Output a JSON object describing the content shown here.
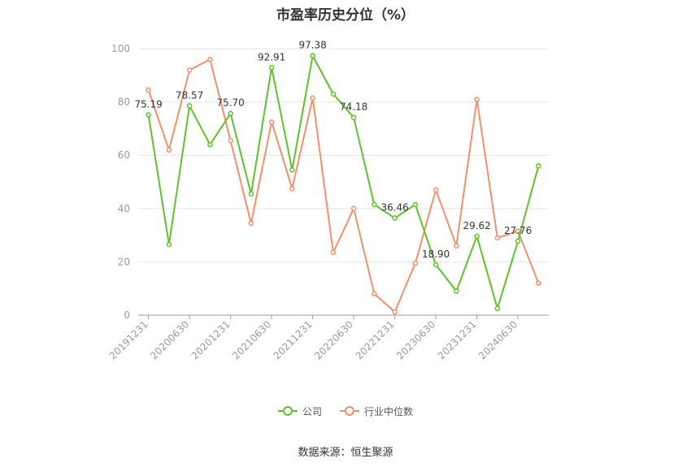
{
  "title": "市盈率历史分位（%）",
  "source": "数据来源：恒生聚源",
  "colors": {
    "company": "#5ec22c",
    "industry": "#f0916a",
    "grid": "#e6e6e6",
    "axis": "#999999",
    "tick_text": "#999999"
  },
  "chart_data": {
    "type": "line",
    "title": "市盈率历史分位（%）",
    "xlabel": "",
    "ylabel": "",
    "ylim": [
      0,
      100
    ],
    "yticks": [
      0,
      20,
      40,
      60,
      80,
      100
    ],
    "grid": true,
    "legend_position": "bottom-center",
    "x": [
      "20191231",
      "20200331",
      "20200630",
      "20200930",
      "20201231",
      "20210331",
      "20210630",
      "20210930",
      "20211231",
      "20220331",
      "20220630",
      "20220930",
      "20221231",
      "20230331",
      "20230630",
      "20230930",
      "20231231",
      "20240331",
      "20240630",
      "20240930"
    ],
    "x_tick_labels": [
      "20191231",
      "20200630",
      "20201231",
      "20210630",
      "20211231",
      "20220630",
      "20221231",
      "20230630",
      "20231231",
      "20240630"
    ],
    "series": [
      {
        "name": "公司",
        "color": "#5ec22c",
        "values": [
          75.19,
          26.5,
          78.57,
          64,
          75.7,
          45.5,
          92.91,
          54.5,
          97.38,
          83,
          74.18,
          41.5,
          36.46,
          41.5,
          18.9,
          9,
          29.62,
          2.5,
          27.76,
          56
        ],
        "labels": [
          "75.19",
          "",
          "78.57",
          "",
          "75.70",
          "",
          "92.91",
          "",
          "97.38",
          "",
          "74.18",
          "",
          "36.46",
          "",
          "18.90",
          "",
          "29.62",
          "",
          "27.76",
          ""
        ]
      },
      {
        "name": "行业中位数",
        "color": "#f0916a",
        "values": [
          84.5,
          62,
          92,
          96,
          65.5,
          34.5,
          72.5,
          47.5,
          81.5,
          23.5,
          40,
          8,
          1.2,
          19.5,
          47,
          26,
          81,
          29,
          31.5,
          12
        ]
      }
    ]
  }
}
